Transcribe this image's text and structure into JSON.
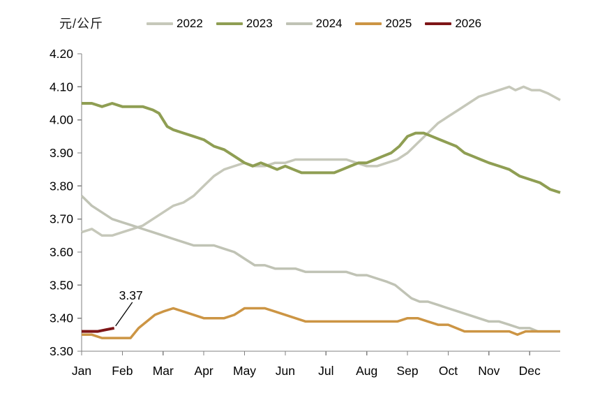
{
  "chart": {
    "unit_label": "元/公斤"
  },
  "chart_data": {
    "type": "line",
    "title": "",
    "unit": "元/公斤",
    "x_categories": [
      "Jan",
      "Feb",
      "Mar",
      "Apr",
      "May",
      "Jun",
      "Jul",
      "Aug",
      "Sep",
      "Oct",
      "Nov",
      "Dec"
    ],
    "x_domain_months": [
      0,
      11.75
    ],
    "ylim": [
      3.3,
      4.2
    ],
    "ytick_step": 0.1,
    "ytick_labels": [
      "3.30",
      "3.40",
      "3.50",
      "3.60",
      "3.70",
      "3.80",
      "3.90",
      "4.00",
      "4.10",
      "4.20"
    ],
    "grid": false,
    "legend_position": "top",
    "axis_color": "#808080",
    "series": [
      {
        "name": "2022",
        "color": "#c6c8ba",
        "width": 3.5,
        "points": [
          [
            0,
            3.66
          ],
          [
            0.25,
            3.67
          ],
          [
            0.5,
            3.65
          ],
          [
            0.75,
            3.65
          ],
          [
            1.0,
            3.66
          ],
          [
            1.25,
            3.67
          ],
          [
            1.5,
            3.68
          ],
          [
            1.75,
            3.7
          ],
          [
            2.0,
            3.72
          ],
          [
            2.25,
            3.74
          ],
          [
            2.5,
            3.75
          ],
          [
            2.75,
            3.77
          ],
          [
            3.0,
            3.8
          ],
          [
            3.25,
            3.83
          ],
          [
            3.5,
            3.85
          ],
          [
            3.75,
            3.86
          ],
          [
            4.0,
            3.87
          ],
          [
            4.25,
            3.86
          ],
          [
            4.5,
            3.86
          ],
          [
            4.75,
            3.87
          ],
          [
            5.0,
            3.87
          ],
          [
            5.25,
            3.88
          ],
          [
            5.5,
            3.88
          ],
          [
            5.75,
            3.88
          ],
          [
            6.0,
            3.88
          ],
          [
            6.25,
            3.88
          ],
          [
            6.5,
            3.88
          ],
          [
            6.75,
            3.87
          ],
          [
            7.0,
            3.86
          ],
          [
            7.25,
            3.86
          ],
          [
            7.5,
            3.87
          ],
          [
            7.75,
            3.88
          ],
          [
            8.0,
            3.9
          ],
          [
            8.25,
            3.93
          ],
          [
            8.5,
            3.96
          ],
          [
            8.75,
            3.99
          ],
          [
            9.0,
            4.01
          ],
          [
            9.25,
            4.03
          ],
          [
            9.5,
            4.05
          ],
          [
            9.75,
            4.07
          ],
          [
            10.0,
            4.08
          ],
          [
            10.25,
            4.09
          ],
          [
            10.5,
            4.1
          ],
          [
            10.65,
            4.09
          ],
          [
            10.85,
            4.1
          ],
          [
            11.05,
            4.09
          ],
          [
            11.25,
            4.09
          ],
          [
            11.45,
            4.08
          ],
          [
            11.6,
            4.07
          ],
          [
            11.75,
            4.06
          ]
        ]
      },
      {
        "name": "2023",
        "color": "#8f9e53",
        "width": 4,
        "points": [
          [
            0,
            4.05
          ],
          [
            0.25,
            4.05
          ],
          [
            0.5,
            4.04
          ],
          [
            0.75,
            4.05
          ],
          [
            1.0,
            4.04
          ],
          [
            1.25,
            4.04
          ],
          [
            1.5,
            4.04
          ],
          [
            1.75,
            4.03
          ],
          [
            1.9,
            4.02
          ],
          [
            2.1,
            3.98
          ],
          [
            2.25,
            3.97
          ],
          [
            2.5,
            3.96
          ],
          [
            2.75,
            3.95
          ],
          [
            3.0,
            3.94
          ],
          [
            3.25,
            3.92
          ],
          [
            3.5,
            3.91
          ],
          [
            3.75,
            3.89
          ],
          [
            4.0,
            3.87
          ],
          [
            4.2,
            3.86
          ],
          [
            4.4,
            3.87
          ],
          [
            4.6,
            3.86
          ],
          [
            4.8,
            3.85
          ],
          [
            5.0,
            3.86
          ],
          [
            5.2,
            3.85
          ],
          [
            5.4,
            3.84
          ],
          [
            5.6,
            3.84
          ],
          [
            5.8,
            3.84
          ],
          [
            6.0,
            3.84
          ],
          [
            6.2,
            3.84
          ],
          [
            6.4,
            3.85
          ],
          [
            6.6,
            3.86
          ],
          [
            6.8,
            3.87
          ],
          [
            7.0,
            3.87
          ],
          [
            7.2,
            3.88
          ],
          [
            7.4,
            3.89
          ],
          [
            7.6,
            3.9
          ],
          [
            7.8,
            3.92
          ],
          [
            8.0,
            3.95
          ],
          [
            8.2,
            3.96
          ],
          [
            8.4,
            3.96
          ],
          [
            8.6,
            3.95
          ],
          [
            8.8,
            3.94
          ],
          [
            9.0,
            3.93
          ],
          [
            9.2,
            3.92
          ],
          [
            9.4,
            3.9
          ],
          [
            9.6,
            3.89
          ],
          [
            9.8,
            3.88
          ],
          [
            10.0,
            3.87
          ],
          [
            10.25,
            3.86
          ],
          [
            10.5,
            3.85
          ],
          [
            10.75,
            3.83
          ],
          [
            11.0,
            3.82
          ],
          [
            11.25,
            3.81
          ],
          [
            11.5,
            3.79
          ],
          [
            11.75,
            3.78
          ]
        ]
      },
      {
        "name": "2024",
        "color": "#c0c3b5",
        "width": 3.5,
        "points": [
          [
            0,
            3.77
          ],
          [
            0.25,
            3.74
          ],
          [
            0.5,
            3.72
          ],
          [
            0.75,
            3.7
          ],
          [
            1.0,
            3.69
          ],
          [
            1.25,
            3.68
          ],
          [
            1.5,
            3.67
          ],
          [
            1.75,
            3.66
          ],
          [
            2.0,
            3.65
          ],
          [
            2.25,
            3.64
          ],
          [
            2.5,
            3.63
          ],
          [
            2.75,
            3.62
          ],
          [
            3.0,
            3.62
          ],
          [
            3.25,
            3.62
          ],
          [
            3.5,
            3.61
          ],
          [
            3.75,
            3.6
          ],
          [
            4.0,
            3.58
          ],
          [
            4.25,
            3.56
          ],
          [
            4.5,
            3.56
          ],
          [
            4.75,
            3.55
          ],
          [
            5.0,
            3.55
          ],
          [
            5.25,
            3.55
          ],
          [
            5.5,
            3.54
          ],
          [
            5.75,
            3.54
          ],
          [
            6.0,
            3.54
          ],
          [
            6.25,
            3.54
          ],
          [
            6.5,
            3.54
          ],
          [
            6.75,
            3.53
          ],
          [
            7.0,
            3.53
          ],
          [
            7.25,
            3.52
          ],
          [
            7.5,
            3.51
          ],
          [
            7.7,
            3.5
          ],
          [
            7.9,
            3.48
          ],
          [
            8.1,
            3.46
          ],
          [
            8.3,
            3.45
          ],
          [
            8.5,
            3.45
          ],
          [
            8.75,
            3.44
          ],
          [
            9.0,
            3.43
          ],
          [
            9.25,
            3.42
          ],
          [
            9.5,
            3.41
          ],
          [
            9.75,
            3.4
          ],
          [
            10.0,
            3.39
          ],
          [
            10.25,
            3.39
          ],
          [
            10.5,
            3.38
          ],
          [
            10.75,
            3.37
          ],
          [
            11.0,
            3.37
          ],
          [
            11.2,
            3.36
          ],
          [
            11.5,
            3.36
          ],
          [
            11.75,
            3.36
          ]
        ]
      },
      {
        "name": "2025",
        "color": "#cc9544",
        "width": 3.5,
        "points": [
          [
            0,
            3.35
          ],
          [
            0.25,
            3.35
          ],
          [
            0.5,
            3.34
          ],
          [
            0.75,
            3.34
          ],
          [
            1.0,
            3.34
          ],
          [
            1.2,
            3.34
          ],
          [
            1.4,
            3.37
          ],
          [
            1.6,
            3.39
          ],
          [
            1.8,
            3.41
          ],
          [
            2.0,
            3.42
          ],
          [
            2.25,
            3.43
          ],
          [
            2.5,
            3.42
          ],
          [
            2.75,
            3.41
          ],
          [
            3.0,
            3.4
          ],
          [
            3.25,
            3.4
          ],
          [
            3.5,
            3.4
          ],
          [
            3.75,
            3.41
          ],
          [
            4.0,
            3.43
          ],
          [
            4.25,
            3.43
          ],
          [
            4.5,
            3.43
          ],
          [
            4.75,
            3.42
          ],
          [
            5.0,
            3.41
          ],
          [
            5.25,
            3.4
          ],
          [
            5.5,
            3.39
          ],
          [
            5.75,
            3.39
          ],
          [
            6.0,
            3.39
          ],
          [
            6.25,
            3.39
          ],
          [
            6.5,
            3.39
          ],
          [
            6.75,
            3.39
          ],
          [
            7.0,
            3.39
          ],
          [
            7.25,
            3.39
          ],
          [
            7.5,
            3.39
          ],
          [
            7.75,
            3.39
          ],
          [
            8.0,
            3.4
          ],
          [
            8.25,
            3.4
          ],
          [
            8.5,
            3.39
          ],
          [
            8.75,
            3.38
          ],
          [
            9.0,
            3.38
          ],
          [
            9.2,
            3.37
          ],
          [
            9.4,
            3.36
          ],
          [
            9.6,
            3.36
          ],
          [
            9.8,
            3.36
          ],
          [
            10.0,
            3.36
          ],
          [
            10.25,
            3.36
          ],
          [
            10.5,
            3.36
          ],
          [
            10.7,
            3.35
          ],
          [
            10.9,
            3.36
          ],
          [
            11.1,
            3.36
          ],
          [
            11.3,
            3.36
          ],
          [
            11.5,
            3.36
          ],
          [
            11.75,
            3.36
          ]
        ]
      },
      {
        "name": "2026",
        "color": "#7e1517",
        "width": 4,
        "points": [
          [
            0,
            3.36
          ],
          [
            0.2,
            3.36
          ],
          [
            0.4,
            3.36
          ],
          [
            0.6,
            3.365
          ],
          [
            0.8,
            3.37
          ]
        ]
      }
    ],
    "annotation": {
      "series": "2026",
      "label": "3.37",
      "at_month": 0.8,
      "value": 3.37
    }
  }
}
